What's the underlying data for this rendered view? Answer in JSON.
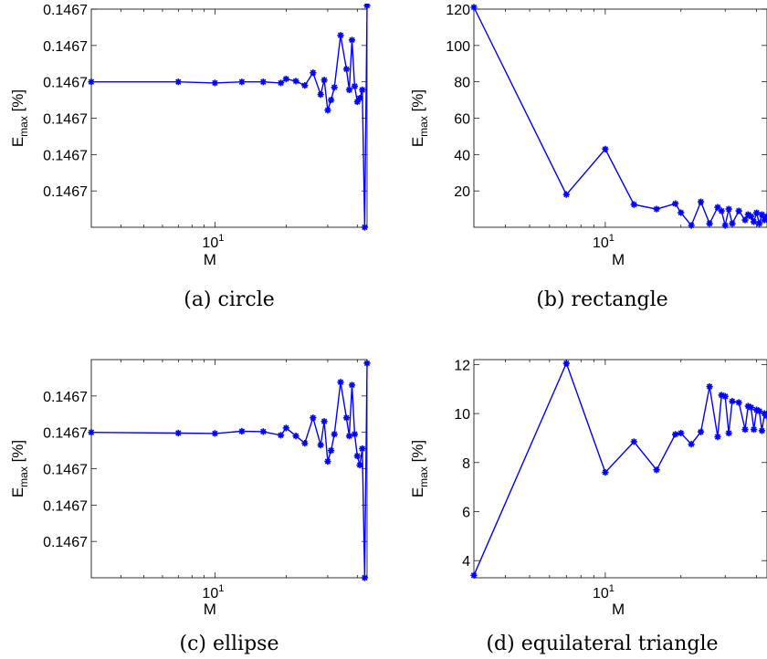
{
  "chart_data": [
    {
      "type": "line",
      "caption": "(a) circle",
      "xlabel": "M",
      "ylabel": "E",
      "ylabel_sub": "max",
      "ylabel_unit": "[%]",
      "xscale": "log",
      "xlim": [
        3,
        44
      ],
      "ylim": [
        0,
        6
      ],
      "y_ticks": [
        {
          "v": 1,
          "label": "0.1467"
        },
        {
          "v": 2,
          "label": "0.1467"
        },
        {
          "v": 3,
          "label": "0.1467"
        },
        {
          "v": 4,
          "label": "0.1467"
        },
        {
          "v": 5,
          "label": "0.1467"
        },
        {
          "v": 6,
          "label": "0.1467"
        }
      ],
      "x_ticks": [
        {
          "v": 10,
          "base": "10",
          "exp": "1"
        }
      ],
      "color": "#0000ff",
      "x": [
        3,
        7,
        10,
        13,
        16,
        19,
        20,
        22,
        24,
        26,
        28,
        29,
        30,
        31,
        32,
        34,
        36,
        37,
        38,
        39,
        40,
        41,
        42,
        43,
        44
      ],
      "y": [
        4.0,
        4.0,
        3.97,
        4.0,
        4.0,
        3.97,
        4.08,
        4.02,
        3.9,
        4.25,
        3.65,
        4.05,
        3.22,
        3.5,
        3.85,
        5.28,
        4.35,
        3.78,
        5.15,
        3.88,
        3.45,
        3.55,
        3.78,
        0.0,
        6.1
      ]
    },
    {
      "type": "line",
      "caption": "(b) rectangle",
      "xlabel": "M",
      "ylabel": "E",
      "ylabel_sub": "max",
      "ylabel_unit": "[%]",
      "xscale": "log",
      "xlim": [
        3,
        44
      ],
      "ylim": [
        0,
        120
      ],
      "y_ticks": [
        {
          "v": 20,
          "label": "20"
        },
        {
          "v": 40,
          "label": "40"
        },
        {
          "v": 60,
          "label": "60"
        },
        {
          "v": 80,
          "label": "80"
        },
        {
          "v": 100,
          "label": "100"
        },
        {
          "v": 120,
          "label": "120"
        }
      ],
      "x_ticks": [
        {
          "v": 10,
          "base": "10",
          "exp": "1"
        }
      ],
      "color": "#0000ff",
      "x": [
        3,
        7,
        10,
        13,
        16,
        19,
        20,
        22,
        24,
        26,
        28,
        29,
        30,
        31,
        32,
        34,
        36,
        37,
        38,
        39,
        40,
        41,
        42,
        43,
        44
      ],
      "y": [
        121,
        18,
        43,
        12.5,
        10,
        13,
        8,
        1,
        14,
        2,
        11,
        9,
        1,
        10,
        2,
        9,
        4,
        7,
        6,
        3,
        8,
        2,
        7,
        4,
        6
      ]
    },
    {
      "type": "line",
      "caption": "(c) ellipse",
      "xlabel": "M",
      "ylabel": "E",
      "ylabel_sub": "max",
      "ylabel_unit": "[%]",
      "xscale": "log",
      "xlim": [
        3,
        44
      ],
      "ylim": [
        0,
        6
      ],
      "y_ticks": [
        {
          "v": 1,
          "label": "0.1467"
        },
        {
          "v": 2,
          "label": "0.1467"
        },
        {
          "v": 3,
          "label": "0.1467"
        },
        {
          "v": 4,
          "label": "0.1467"
        },
        {
          "v": 5,
          "label": "0.1467"
        }
      ],
      "x_ticks": [
        {
          "v": 10,
          "base": "10",
          "exp": "1"
        }
      ],
      "color": "#0000ff",
      "x": [
        3,
        7,
        10,
        13,
        16,
        19,
        20,
        22,
        24,
        26,
        28,
        29,
        30,
        31,
        32,
        34,
        36,
        37,
        38,
        39,
        40,
        41,
        42,
        43,
        44
      ],
      "y": [
        4.0,
        3.98,
        3.97,
        4.03,
        4.02,
        3.92,
        4.12,
        3.9,
        3.7,
        4.4,
        3.65,
        4.3,
        3.2,
        3.5,
        3.95,
        5.38,
        4.4,
        3.9,
        5.3,
        3.95,
        3.35,
        3.1,
        3.55,
        0.0,
        5.9
      ]
    },
    {
      "type": "line",
      "caption": "(d) equilateral triangle",
      "xlabel": "M",
      "ylabel": "E",
      "ylabel_sub": "max",
      "ylabel_unit": "[%]",
      "xscale": "log",
      "xlim": [
        3,
        44
      ],
      "ylim": [
        3.3,
        12.2
      ],
      "y_ticks": [
        {
          "v": 4,
          "label": "4"
        },
        {
          "v": 6,
          "label": "6"
        },
        {
          "v": 8,
          "label": "8"
        },
        {
          "v": 10,
          "label": "10"
        },
        {
          "v": 12,
          "label": "12"
        }
      ],
      "x_ticks": [
        {
          "v": 10,
          "base": "10",
          "exp": "1"
        }
      ],
      "color": "#0000ff",
      "x": [
        3,
        7,
        10,
        13,
        16,
        19,
        20,
        22,
        24,
        26,
        28,
        29,
        30,
        31,
        32,
        34,
        36,
        37,
        38,
        39,
        40,
        41,
        42,
        43,
        44
      ],
      "y": [
        3.4,
        12.05,
        7.6,
        8.85,
        7.7,
        9.15,
        9.2,
        8.75,
        9.25,
        11.1,
        9.05,
        10.75,
        10.7,
        9.2,
        10.5,
        10.45,
        9.35,
        10.3,
        10.25,
        9.35,
        10.15,
        10.1,
        9.3,
        10.0,
        9.9
      ]
    }
  ]
}
